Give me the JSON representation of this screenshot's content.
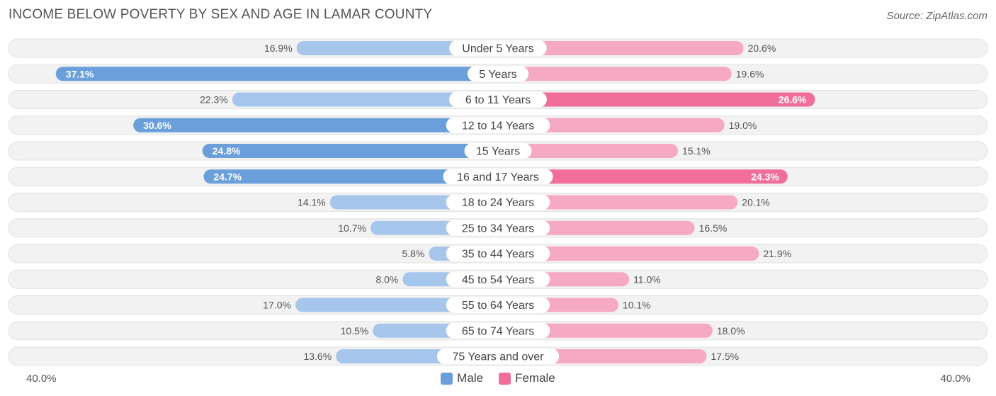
{
  "title": "INCOME BELOW POVERTY BY SEX AND AGE IN LAMAR COUNTY",
  "source": "Source: ZipAtlas.com",
  "axis": {
    "left_label": "40.0%",
    "right_label": "40.0%"
  },
  "legend": {
    "male_label": "Male",
    "female_label": "Female"
  },
  "colors": {
    "male_dark": "#6a9fdc",
    "male_light": "#a7c6ec",
    "female_dark": "#f06e99",
    "female_light": "#f6a9c3",
    "row_bg": "#f2f2f2"
  },
  "chart_data": {
    "type": "bar",
    "orientation": "horizontal-diverging",
    "title": "INCOME BELOW POVERTY BY SEX AND AGE IN LAMAR COUNTY",
    "xlim": [
      -40,
      40
    ],
    "categories": [
      "Under 5 Years",
      "5 Years",
      "6 to 11 Years",
      "12 to 14 Years",
      "15 Years",
      "16 and 17 Years",
      "18 to 24 Years",
      "25 to 34 Years",
      "35 to 44 Years",
      "45 to 54 Years",
      "55 to 64 Years",
      "65 to 74 Years",
      "75 Years and over"
    ],
    "series": [
      {
        "name": "Male",
        "values": [
          16.9,
          37.1,
          22.3,
          30.6,
          24.8,
          24.7,
          14.1,
          10.7,
          5.8,
          8.0,
          17.0,
          10.5,
          13.6
        ],
        "labels": [
          "16.9%",
          "37.1%",
          "22.3%",
          "30.6%",
          "24.8%",
          "24.7%",
          "14.1%",
          "10.7%",
          "5.8%",
          "8.0%",
          "17.0%",
          "10.5%",
          "13.6%"
        ]
      },
      {
        "name": "Female",
        "values": [
          20.6,
          19.6,
          26.6,
          19.0,
          15.1,
          24.3,
          20.1,
          16.5,
          21.9,
          11.0,
          10.1,
          18.0,
          17.5
        ],
        "labels": [
          "20.6%",
          "19.6%",
          "26.6%",
          "19.0%",
          "15.1%",
          "24.3%",
          "20.1%",
          "16.5%",
          "21.9%",
          "11.0%",
          "10.1%",
          "18.0%",
          "17.5%"
        ]
      }
    ],
    "legend_position": "bottom-center"
  }
}
